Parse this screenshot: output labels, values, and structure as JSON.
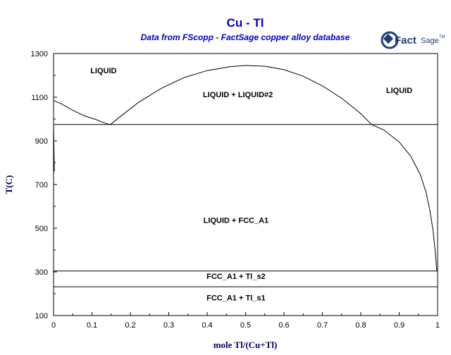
{
  "title": "Cu - Tl",
  "subtitle": "Data from FScopp - FactSage copper alloy database",
  "logo": {
    "brand_bold": "Fact",
    "brand_light": "Sage",
    "trademark": "TM",
    "color": "#1f3f7a"
  },
  "chart_data": {
    "type": "line",
    "title": "Cu - Tl",
    "xlabel": "mole Tl/(Cu+Tl)",
    "ylabel": "T(C)",
    "xlim": [
      0,
      1
    ],
    "ylim": [
      100,
      1300
    ],
    "x_ticks": [
      "0",
      "0.1",
      "0.2",
      "0.3",
      "0.4",
      "0.5",
      "0.6",
      "0.7",
      "0.8",
      "0.9",
      "1"
    ],
    "y_ticks": [
      "100",
      "300",
      "500",
      "700",
      "900",
      "1100",
      "1300"
    ],
    "series": [
      {
        "points": [
          [
            0,
            1085
          ],
          [
            0.02,
            1070
          ],
          [
            0.05,
            1040
          ],
          [
            0.08,
            1015
          ],
          [
            0.11,
            998
          ],
          [
            0.135,
            980
          ],
          [
            0.148,
            975
          ]
        ]
      },
      {
        "points": [
          [
            0.148,
            975
          ],
          [
            0.18,
            1020
          ],
          [
            0.22,
            1075
          ],
          [
            0.28,
            1140
          ],
          [
            0.34,
            1190
          ],
          [
            0.4,
            1222
          ],
          [
            0.46,
            1240
          ],
          [
            0.5,
            1245
          ],
          [
            0.55,
            1242
          ],
          [
            0.6,
            1226
          ],
          [
            0.65,
            1196
          ],
          [
            0.7,
            1152
          ],
          [
            0.75,
            1095
          ],
          [
            0.8,
            1025
          ],
          [
            0.828,
            975
          ]
        ]
      },
      {
        "points": [
          [
            0.828,
            975
          ],
          [
            0.86,
            950
          ],
          [
            0.9,
            895
          ],
          [
            0.93,
            830
          ],
          [
            0.955,
            745
          ],
          [
            0.97,
            665
          ],
          [
            0.98,
            580
          ],
          [
            0.988,
            490
          ],
          [
            0.994,
            390
          ],
          [
            0.998,
            304
          ]
        ]
      },
      {
        "points": [
          [
            0,
            975
          ],
          [
            1,
            975
          ]
        ]
      },
      {
        "points": [
          [
            0,
            304
          ],
          [
            1,
            304
          ]
        ]
      },
      {
        "points": [
          [
            0,
            232
          ],
          [
            1,
            232
          ]
        ]
      },
      {
        "points": [
          [
            0,
            1085
          ],
          [
            0,
            975
          ],
          [
            0.002,
            760
          ]
        ]
      }
    ],
    "labels": [
      {
        "text": "LIQUID",
        "x": 0.13,
        "y": 1210
      },
      {
        "text": "LIQUID + LIQUID#2",
        "x": 0.48,
        "y": 1100
      },
      {
        "text": "LIQUID",
        "x": 0.9,
        "y": 1120
      },
      {
        "text": "LIQUID + FCC_A1",
        "x": 0.475,
        "y": 525
      },
      {
        "text": "FCC_A1 + Tl_s2",
        "x": 0.475,
        "y": 268
      },
      {
        "text": "FCC_A1 + Tl_s1",
        "x": 0.475,
        "y": 170
      }
    ],
    "grid": false
  }
}
